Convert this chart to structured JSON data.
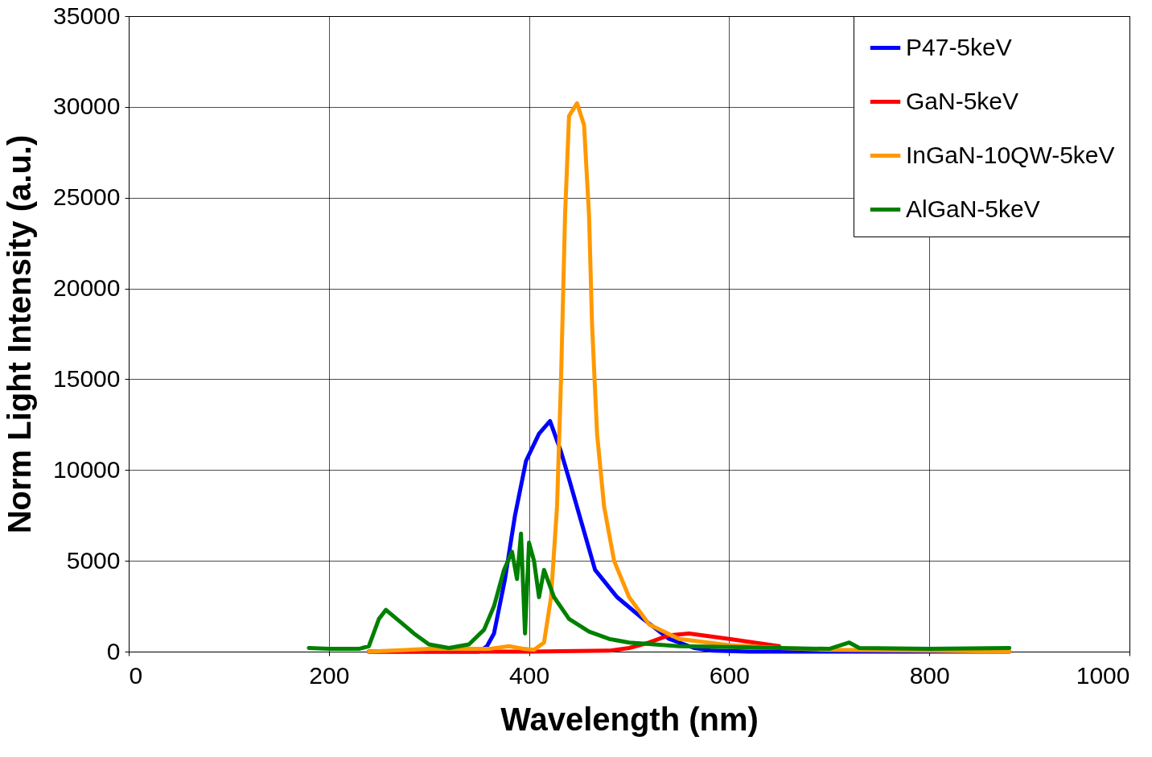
{
  "chart_data": {
    "type": "line",
    "xlabel": "Wavelength (nm)",
    "ylabel": "Norm Light Intensity (a.u.)",
    "xlim": [
      0,
      1000
    ],
    "xticks": [
      0,
      200,
      400,
      600,
      800,
      1000
    ],
    "ylim": [
      0,
      35000
    ],
    "yticks": [
      0,
      5000,
      10000,
      15000,
      20000,
      25000,
      30000,
      35000
    ],
    "grid": true,
    "legend": "top right",
    "marker": "none",
    "line_style": "solid",
    "series": [
      {
        "name": "P47-5keV",
        "color": "#0000ff",
        "x": [
          240,
          300,
          350,
          358,
          365,
          376,
          386,
          397,
          410,
          421,
          432,
          440,
          453,
          466,
          488,
          514,
          540,
          565,
          583,
          620,
          700,
          880
        ],
        "values": [
          0,
          0,
          0,
          300,
          1000,
          4000,
          7500,
          10500,
          12000,
          12700,
          11000,
          9500,
          7000,
          4500,
          3000,
          1800,
          700,
          200,
          50,
          0,
          0,
          0
        ]
      },
      {
        "name": "GaN-5keV",
        "color": "#ff0000",
        "x": [
          240,
          300,
          400,
          480,
          500,
          520,
          540,
          560,
          600,
          650
        ],
        "values": [
          0,
          0,
          0,
          50,
          200,
          500,
          900,
          1000,
          700,
          300
        ]
      },
      {
        "name": "InGaN-10QW-5keV",
        "color": "#ff9900",
        "x": [
          240,
          300,
          360,
          380,
          395,
          405,
          415,
          422,
          428,
          432,
          436,
          440,
          448,
          455,
          460,
          463,
          468,
          475,
          485,
          500,
          520,
          550,
          600,
          650,
          700,
          800,
          880
        ],
        "values": [
          0,
          150,
          150,
          300,
          150,
          100,
          500,
          3000,
          8000,
          15000,
          24000,
          29500,
          30200,
          29000,
          24000,
          18000,
          12000,
          8000,
          5000,
          3000,
          1500,
          700,
          350,
          200,
          100,
          50,
          0
        ]
      },
      {
        "name": "AlGaN-5keV",
        "color": "#008000",
        "x": [
          180,
          200,
          230,
          240,
          250,
          257,
          270,
          285,
          300,
          320,
          340,
          355,
          365,
          375,
          383,
          388,
          392,
          396,
          400,
          405,
          410,
          415,
          425,
          440,
          460,
          480,
          500,
          550,
          600,
          650,
          700,
          720,
          730,
          800,
          880
        ],
        "values": [
          200,
          150,
          150,
          300,
          1800,
          2300,
          1700,
          1000,
          400,
          200,
          400,
          1200,
          2500,
          4500,
          5500,
          4000,
          6500,
          1000,
          6000,
          5000,
          3000,
          4500,
          3000,
          1800,
          1100,
          700,
          500,
          300,
          250,
          200,
          150,
          500,
          200,
          150,
          200
        ]
      }
    ]
  }
}
